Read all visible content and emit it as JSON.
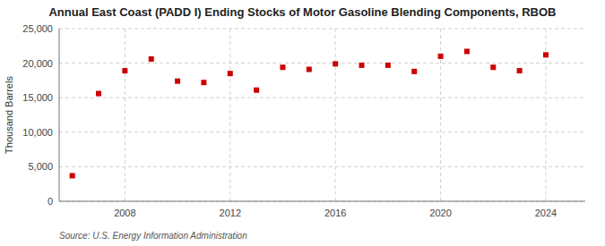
{
  "chart_data": {
    "type": "scatter",
    "title": "Annual East Coast (PADD I) Ending Stocks of Motor Gasoline Blending Components, RBOB",
    "ylabel": "Thousand Barrels",
    "source": "Source: U.S. Energy Information Administration",
    "x": [
      2006,
      2007,
      2008,
      2009,
      2010,
      2011,
      2012,
      2013,
      2014,
      2015,
      2016,
      2017,
      2018,
      2019,
      2020,
      2021,
      2022,
      2023,
      2024
    ],
    "values": [
      3700,
      15600,
      18900,
      20600,
      17400,
      17200,
      18500,
      16100,
      19400,
      19100,
      19900,
      19700,
      19700,
      18800,
      21000,
      21700,
      19400,
      18900,
      21200
    ],
    "color": "#cc0000",
    "marker": "square",
    "xlim": [
      2005.5,
      2025.5
    ],
    "xticks": [
      2008,
      2012,
      2016,
      2020,
      2024
    ],
    "ylim": [
      0,
      25000
    ],
    "yticks": [
      0,
      {
        "value": 5000,
        "label": "5,000"
      },
      {
        "value": 10000,
        "label": "10,000"
      },
      {
        "value": 15000,
        "label": "15,000"
      },
      {
        "value": 20000,
        "label": "20,000"
      },
      {
        "value": 25000,
        "label": "25,000"
      }
    ],
    "grid": true
  }
}
